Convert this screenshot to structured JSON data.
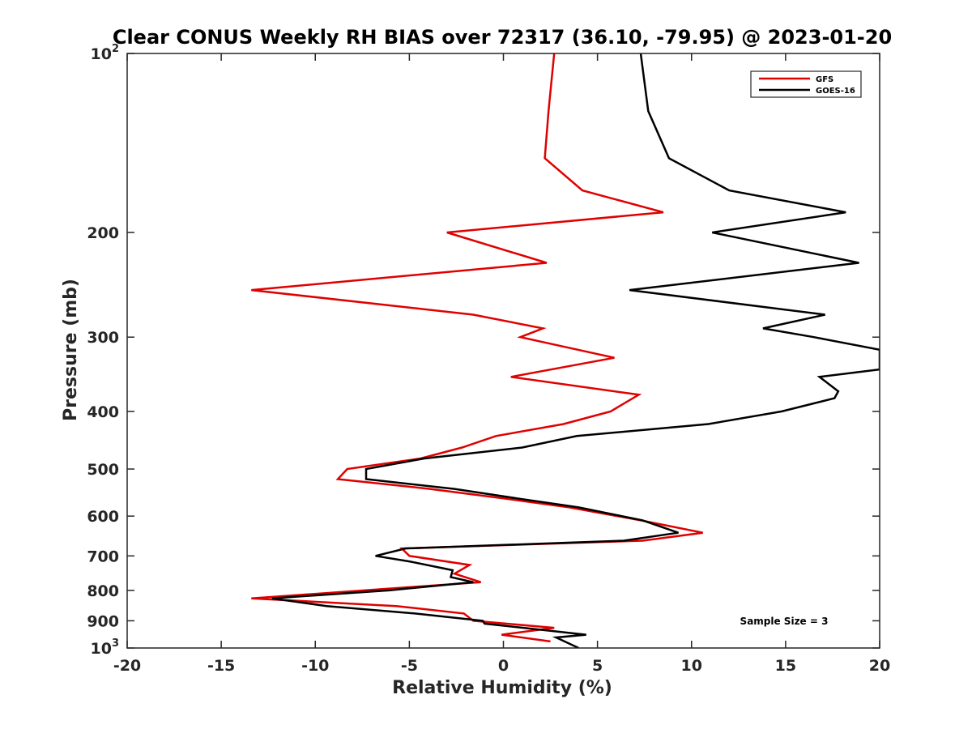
{
  "chart_data": {
    "type": "line",
    "title": "Clear CONUS Weekly RH BIAS over 72317 (36.10, -79.95) @ 2023-01-20",
    "xlabel": "Relative Humidity (%)",
    "ylabel": "Pressure (mb)",
    "xlim": [
      -20,
      20
    ],
    "ylim": [
      100,
      1000
    ],
    "y_scale": "log",
    "y_reversed": true,
    "grid": false,
    "legend_position": "top-right",
    "x_ticks": [
      "-20",
      "-15",
      "-10",
      "-5",
      "0",
      "5",
      "10",
      "15",
      "20"
    ],
    "y_ticks": [
      {
        "value": 100,
        "base": "10",
        "exp": "2"
      },
      {
        "value": 200,
        "label": "200"
      },
      {
        "value": 300,
        "label": "300"
      },
      {
        "value": 400,
        "label": "400"
      },
      {
        "value": 500,
        "label": "500"
      },
      {
        "value": 600,
        "label": "600"
      },
      {
        "value": 700,
        "label": "700"
      },
      {
        "value": 800,
        "label": "800"
      },
      {
        "value": 900,
        "label": "900"
      },
      {
        "value": 1000,
        "base": "10",
        "exp": "3"
      }
    ],
    "annotation": "Sample Size = 3",
    "series": [
      {
        "name": "GFS",
        "color": "#e00000",
        "points": [
          {
            "x": 2.7,
            "y": 100
          },
          {
            "x": 2.4,
            "y": 125
          },
          {
            "x": 2.2,
            "y": 150
          },
          {
            "x": 4.2,
            "y": 170
          },
          {
            "x": 8.5,
            "y": 185
          },
          {
            "x": -3.0,
            "y": 200
          },
          {
            "x": 2.3,
            "y": 225
          },
          {
            "x": -13.4,
            "y": 250
          },
          {
            "x": -1.6,
            "y": 275
          },
          {
            "x": 2.1,
            "y": 290
          },
          {
            "x": 0.9,
            "y": 300
          },
          {
            "x": 5.9,
            "y": 325
          },
          {
            "x": 0.4,
            "y": 350
          },
          {
            "x": 7.2,
            "y": 375
          },
          {
            "x": 5.7,
            "y": 400
          },
          {
            "x": 3.2,
            "y": 420
          },
          {
            "x": -0.4,
            "y": 440
          },
          {
            "x": -2.2,
            "y": 460
          },
          {
            "x": -4.4,
            "y": 480
          },
          {
            "x": -8.3,
            "y": 500
          },
          {
            "x": -8.8,
            "y": 520
          },
          {
            "x": -3.9,
            "y": 540
          },
          {
            "x": 0.0,
            "y": 560
          },
          {
            "x": 3.5,
            "y": 580
          },
          {
            "x": 7.3,
            "y": 610
          },
          {
            "x": 10.6,
            "y": 640
          },
          {
            "x": 7.4,
            "y": 660
          },
          {
            "x": -5.4,
            "y": 680
          },
          {
            "x": -5.0,
            "y": 700
          },
          {
            "x": -1.8,
            "y": 725
          },
          {
            "x": -2.6,
            "y": 750
          },
          {
            "x": -1.2,
            "y": 775
          },
          {
            "x": -13.4,
            "y": 825
          },
          {
            "x": -5.7,
            "y": 850
          },
          {
            "x": -2.1,
            "y": 875
          },
          {
            "x": -1.6,
            "y": 900
          },
          {
            "x": 2.7,
            "y": 925
          },
          {
            "x": -0.1,
            "y": 950
          },
          {
            "x": 2.5,
            "y": 975
          }
        ]
      },
      {
        "name": "GOES-16",
        "color": "#000000",
        "points": [
          {
            "x": 7.3,
            "y": 100
          },
          {
            "x": 7.7,
            "y": 125
          },
          {
            "x": 8.8,
            "y": 150
          },
          {
            "x": 12.0,
            "y": 170
          },
          {
            "x": 18.2,
            "y": 185
          },
          {
            "x": 11.1,
            "y": 200
          },
          {
            "x": 18.9,
            "y": 225
          },
          {
            "x": 6.7,
            "y": 250
          },
          {
            "x": 17.1,
            "y": 275
          },
          {
            "x": 13.8,
            "y": 290
          },
          {
            "x": 16.5,
            "y": 300
          },
          {
            "x": 20.0,
            "y": 315
          },
          {
            "x": 20.0,
            "y": 340
          },
          {
            "x": 16.8,
            "y": 350
          },
          {
            "x": 17.8,
            "y": 370
          },
          {
            "x": 17.6,
            "y": 380
          },
          {
            "x": 14.8,
            "y": 400
          },
          {
            "x": 10.9,
            "y": 420
          },
          {
            "x": 3.9,
            "y": 440
          },
          {
            "x": 1.0,
            "y": 460
          },
          {
            "x": -4.2,
            "y": 480
          },
          {
            "x": -7.3,
            "y": 500
          },
          {
            "x": -7.3,
            "y": 520
          },
          {
            "x": -2.6,
            "y": 540
          },
          {
            "x": 0.7,
            "y": 560
          },
          {
            "x": 4.0,
            "y": 580
          },
          {
            "x": 7.4,
            "y": 610
          },
          {
            "x": 9.3,
            "y": 640
          },
          {
            "x": 6.4,
            "y": 660
          },
          {
            "x": -5.2,
            "y": 680
          },
          {
            "x": -6.8,
            "y": 700
          },
          {
            "x": -5.0,
            "y": 715
          },
          {
            "x": -2.7,
            "y": 740
          },
          {
            "x": -2.8,
            "y": 760
          },
          {
            "x": -1.6,
            "y": 775
          },
          {
            "x": -6.1,
            "y": 800
          },
          {
            "x": -12.3,
            "y": 825
          },
          {
            "x": -9.4,
            "y": 850
          },
          {
            "x": -4.7,
            "y": 875
          },
          {
            "x": -1.1,
            "y": 900
          },
          {
            "x": -1.0,
            "y": 910
          },
          {
            "x": 4.4,
            "y": 950
          },
          {
            "x": 2.8,
            "y": 960
          },
          {
            "x": 4.0,
            "y": 1000
          }
        ]
      }
    ]
  }
}
